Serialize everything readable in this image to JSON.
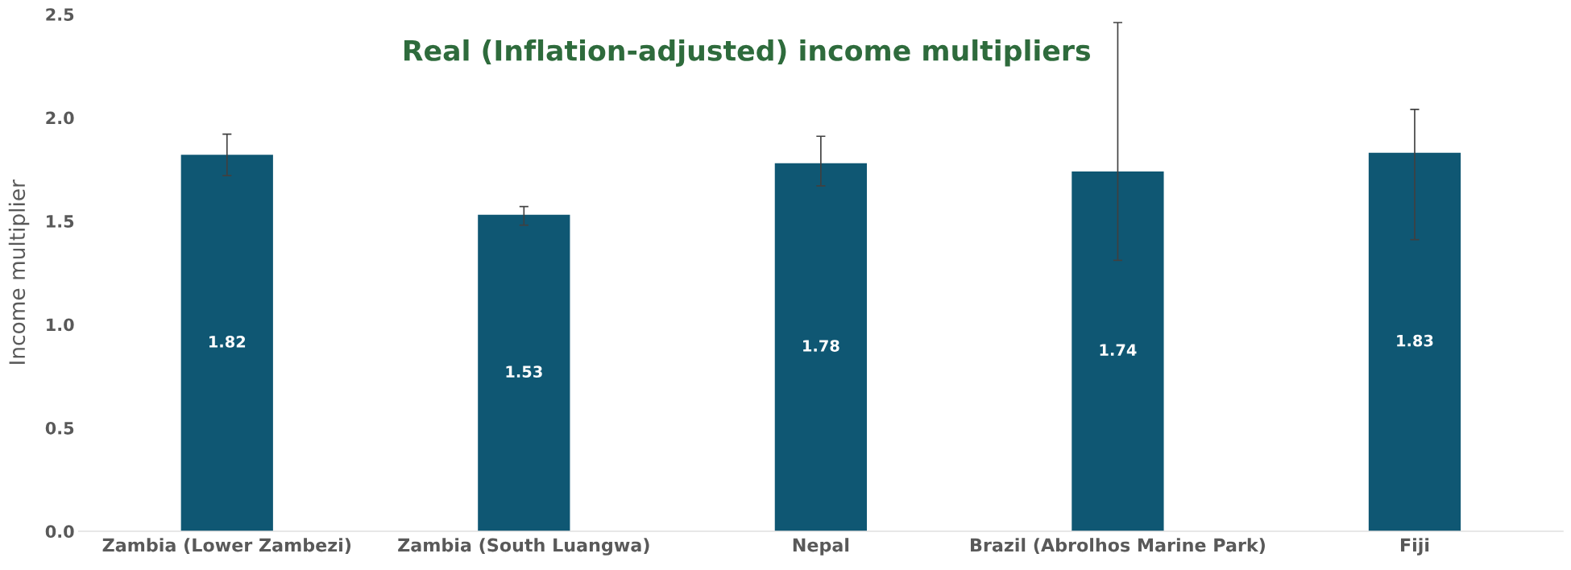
{
  "chart_data": {
    "type": "bar",
    "title": "Real (Inflation-adjusted) income multipliers",
    "ylabel": "Income multiplier",
    "categories": [
      "Zambia (Lower Zambezi)",
      "Zambia (South Luangwa)",
      "Nepal",
      "Brazil (Abrolhos Marine Park)",
      "Fiji"
    ],
    "values": [
      1.82,
      1.53,
      1.78,
      1.74,
      1.83
    ],
    "errors": [
      [
        1.72,
        1.92
      ],
      [
        1.48,
        1.57
      ],
      [
        1.67,
        1.91
      ],
      [
        1.31,
        2.46
      ],
      [
        1.41,
        2.04
      ]
    ],
    "color": "#0f5773",
    "data_labels": true,
    "ylim": [
      0,
      2.5
    ],
    "yticks": [
      {
        "value": 0,
        "label": "0.0"
      },
      {
        "value": 0.5,
        "label": "0.5"
      },
      {
        "value": 1,
        "label": "1.0"
      },
      {
        "value": 1.5,
        "label": "1.5"
      },
      {
        "value": 2,
        "label": "2.0"
      },
      {
        "value": 2.5,
        "label": "2.5"
      }
    ],
    "grid": false,
    "legend": false
  }
}
